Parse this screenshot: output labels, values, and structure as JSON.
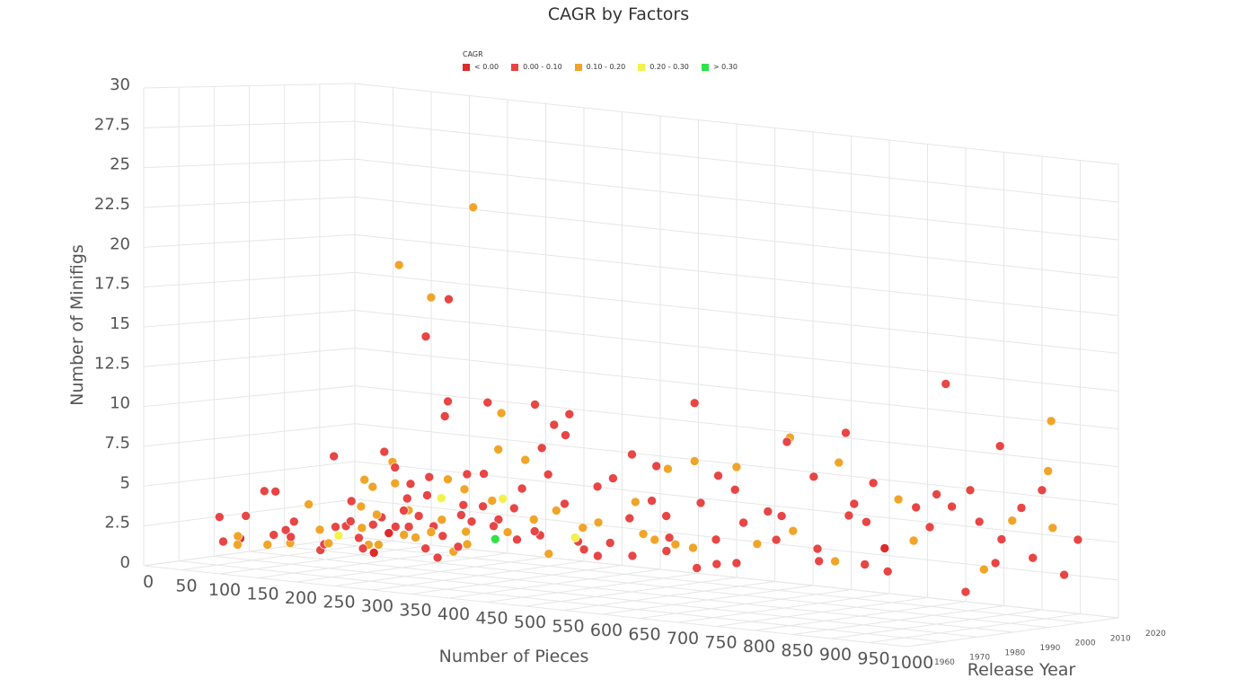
{
  "chart_data": {
    "type": "scatter3d",
    "title": "CAGR by Factors",
    "x_axis": {
      "label": "Number of Pieces",
      "range": [
        0,
        1000
      ],
      "ticks": [
        0,
        50,
        100,
        150,
        200,
        250,
        300,
        350,
        400,
        450,
        500,
        550,
        600,
        650,
        700,
        750,
        800,
        850,
        900,
        950,
        1000
      ]
    },
    "y_axis": {
      "label": "Release Year",
      "range": [
        1960,
        2020
      ],
      "ticks": [
        1960,
        1970,
        1980,
        1990,
        2000,
        2010,
        2020
      ]
    },
    "z_axis": {
      "label": "Number of Minifigs",
      "range": [
        0,
        30
      ],
      "ticks": [
        "0",
        "2.5",
        "5",
        "7.5",
        "10",
        "12.5",
        "15",
        "17.5",
        "20",
        "22.5",
        "25",
        "27.5",
        "30"
      ]
    },
    "grid": true,
    "legend": {
      "title": "CAGR",
      "placement": "top-center",
      "entries": [
        {
          "label": "< 0.00",
          "color": "#e02a2a"
        },
        {
          "label": "0.00 - 0.10",
          "color": "#e84545"
        },
        {
          "label": "0.10 - 0.20",
          "color": "#f0a529"
        },
        {
          "label": "0.20 - 0.30",
          "color": "#f2f24a"
        },
        {
          "label": "> 0.30",
          "color": "#2ee24a"
        }
      ]
    },
    "point_fields": [
      "pieces",
      "release_year",
      "minifigs",
      "cagr_class"
    ],
    "points": [
      [
        12,
        1980,
        1.0,
        1
      ],
      [
        25,
        1982,
        1.2,
        0
      ],
      [
        40,
        1978,
        1.0,
        2
      ],
      [
        55,
        1985,
        1.5,
        1
      ],
      [
        70,
        1980,
        1.1,
        2
      ],
      [
        80,
        1983,
        2.0,
        1
      ],
      [
        95,
        1981,
        1.3,
        2
      ],
      [
        105,
        1979,
        1.8,
        1
      ],
      [
        120,
        1984,
        2.2,
        2
      ],
      [
        130,
        1982,
        1.0,
        1
      ],
      [
        145,
        1986,
        2.5,
        1
      ],
      [
        150,
        1980,
        1.6,
        2
      ],
      [
        165,
        1983,
        3.0,
        1
      ],
      [
        170,
        1987,
        1.4,
        2
      ],
      [
        185,
        1981,
        2.1,
        1
      ],
      [
        190,
        1985,
        3.5,
        2
      ],
      [
        200,
        1982,
        1.2,
        0
      ],
      [
        210,
        1986,
        2.8,
        1
      ],
      [
        220,
        1979,
        1.9,
        2
      ],
      [
        230,
        1984,
        4.0,
        1
      ],
      [
        240,
        1988,
        1.5,
        1
      ],
      [
        250,
        1983,
        2.4,
        2
      ],
      [
        255,
        1980,
        3.2,
        1
      ],
      [
        265,
        1986,
        1.1,
        1
      ],
      [
        275,
        1982,
        2.9,
        2
      ],
      [
        285,
        1989,
        4.5,
        1
      ],
      [
        295,
        1984,
        1.7,
        2
      ],
      [
        305,
        1987,
        3.6,
        1
      ],
      [
        315,
        1981,
        2.2,
        1
      ],
      [
        60,
        1976,
        3.0,
        1
      ],
      [
        75,
        1978,
        4.6,
        1
      ],
      [
        85,
        1979,
        4.6,
        1
      ],
      [
        30,
        1975,
        2.8,
        1
      ],
      [
        160,
        1988,
        5.5,
        2
      ],
      [
        200,
        1988,
        6.5,
        1
      ],
      [
        180,
        1986,
        5.2,
        2
      ],
      [
        110,
        1983,
        3.8,
        2
      ],
      [
        140,
        1985,
        1.9,
        3
      ],
      [
        225,
        1987,
        5.6,
        1
      ],
      [
        260,
        1990,
        6.0,
        2
      ],
      [
        45,
        1977,
        1.6,
        2
      ],
      [
        100,
        1981,
        2.7,
        1
      ],
      [
        215,
        1983,
        2.5,
        0
      ],
      [
        290,
        1989,
        2.0,
        2
      ],
      [
        320,
        1990,
        3.3,
        1
      ],
      [
        135,
        1982,
        1.4,
        1
      ],
      [
        175,
        1984,
        2.6,
        2
      ],
      [
        245,
        1985,
        3.7,
        1
      ],
      [
        195,
        1980,
        1.5,
        1
      ],
      [
        120,
        1988,
        6.8,
        1
      ],
      [
        30,
        2008,
        1.2,
        1
      ],
      [
        45,
        2012,
        2.5,
        2
      ],
      [
        60,
        2006,
        3.1,
        1
      ],
      [
        70,
        2010,
        1.5,
        1
      ],
      [
        85,
        2013,
        4.2,
        2
      ],
      [
        95,
        2007,
        2.2,
        1
      ],
      [
        110,
        2011,
        3.4,
        1
      ],
      [
        115,
        2009,
        1.1,
        2
      ],
      [
        125,
        2014,
        4.8,
        1
      ],
      [
        135,
        2006,
        2.9,
        2
      ],
      [
        140,
        2012,
        1.7,
        1
      ],
      [
        150,
        2008,
        3.9,
        1
      ],
      [
        160,
        2010,
        2.3,
        2
      ],
      [
        170,
        2015,
        5.2,
        1
      ],
      [
        175,
        2007,
        1.4,
        1
      ],
      [
        185,
        2011,
        4.4,
        2
      ],
      [
        190,
        2009,
        2.8,
        1
      ],
      [
        200,
        2013,
        3.3,
        1
      ],
      [
        210,
        2006,
        1.9,
        2
      ],
      [
        215,
        2010,
        5.6,
        1
      ],
      [
        225,
        2012,
        2.6,
        1
      ],
      [
        235,
        2008,
        4.0,
        2
      ],
      [
        240,
        2014,
        1.3,
        1
      ],
      [
        250,
        2011,
        3.5,
        1
      ],
      [
        260,
        2007,
        2.1,
        2
      ],
      [
        265,
        2010,
        4.9,
        1
      ],
      [
        275,
        2013,
        1.8,
        1
      ],
      [
        285,
        2009,
        3.0,
        2
      ],
      [
        290,
        2012,
        5.9,
        1
      ],
      [
        300,
        2006,
        2.4,
        1
      ],
      [
        310,
        2010,
        3.7,
        2
      ],
      [
        320,
        2014,
        1.6,
        1
      ],
      [
        330,
        2008,
        4.3,
        1
      ],
      [
        340,
        2011,
        2.7,
        2
      ],
      [
        350,
        2013,
        5.4,
        1
      ],
      [
        360,
        2007,
        1.5,
        1
      ],
      [
        365,
        2010,
        3.2,
        2
      ],
      [
        375,
        2012,
        6.1,
        1
      ],
      [
        385,
        2009,
        2.0,
        1
      ],
      [
        395,
        2014,
        4.6,
        2
      ],
      [
        405,
        2011,
        1.2,
        1
      ],
      [
        415,
        2008,
        3.8,
        1
      ],
      [
        425,
        2013,
        2.3,
        2
      ],
      [
        435,
        2010,
        5.0,
        1
      ],
      [
        445,
        2012,
        1.7,
        1
      ],
      [
        230,
        2010,
        1.4,
        4
      ],
      [
        150,
        2012,
        3.6,
        3
      ],
      [
        330,
        2011,
        2.0,
        3
      ],
      [
        100,
        2009,
        5.8,
        2
      ],
      [
        80,
        2011,
        6.3,
        1
      ],
      [
        260,
        2012,
        6.7,
        2
      ],
      [
        240,
        2010,
        4.1,
        3
      ],
      [
        355,
        2012,
        0.9,
        1
      ],
      [
        300,
        2010,
        0.8,
        2
      ],
      [
        410,
        2013,
        2.6,
        2
      ],
      [
        201,
        2010,
        23.0,
        2
      ],
      [
        104,
        2010,
        18.7,
        2
      ],
      [
        146,
        2010,
        16.8,
        2
      ],
      [
        169,
        2010,
        16.8,
        1
      ],
      [
        139,
        2010,
        14.2,
        1
      ],
      [
        168,
        2010,
        10.1,
        1
      ],
      [
        220,
        2010,
        10.3,
        1
      ],
      [
        282,
        2010,
        10.5,
        1
      ],
      [
        238,
        2010,
        9.7,
        2
      ],
      [
        164,
        2010,
        9.1,
        1
      ],
      [
        307,
        2010,
        9.3,
        1
      ],
      [
        327,
        2010,
        10.1,
        1
      ],
      [
        322,
        2010,
        8.7,
        1
      ],
      [
        291,
        2010,
        7.7,
        1
      ],
      [
        234,
        2010,
        7.3,
        2
      ],
      [
        409,
        2010,
        7.9,
        1
      ],
      [
        441,
        2010,
        7.3,
        1
      ],
      [
        456,
        2010,
        7.2,
        2
      ],
      [
        491,
        2010,
        7.9,
        2
      ],
      [
        491,
        2010,
        11.7,
        1
      ],
      [
        494,
        2010,
        0.9,
        1
      ],
      [
        520,
        2010,
        1.3,
        1
      ],
      [
        546,
        2010,
        1.5,
        1
      ],
      [
        654,
        2010,
        2.2,
        1
      ],
      [
        714,
        2010,
        2.3,
        1
      ],
      [
        744,
        2010,
        2.0,
        1
      ],
      [
        846,
        2010,
        1.2,
        1
      ],
      [
        885,
        2010,
        3.3,
        1
      ],
      [
        934,
        2010,
        3.9,
        1
      ],
      [
        993,
        2010,
        5.4,
        1
      ],
      [
        958,
        2010,
        13.0,
        2
      ],
      [
        820,
        2010,
        14.7,
        1
      ],
      [
        689,
        2010,
        10.8,
        1
      ],
      [
        891,
        2010,
        11.0,
        1
      ],
      [
        616,
        2010,
        10.1,
        2
      ],
      [
        612,
        2010,
        9.8,
        1
      ],
      [
        647,
        2010,
        7.7,
        1
      ],
      [
        680,
        2010,
        8.8,
        2
      ],
      [
        725,
        2010,
        7.7,
        1
      ],
      [
        758,
        2010,
        6.8,
        2
      ],
      [
        852,
        2010,
        7.9,
        1
      ],
      [
        919,
        2010,
        7.1,
        1
      ],
      [
        954,
        2010,
        9.7,
        2
      ],
      [
        946,
        2010,
        8.4,
        1
      ],
      [
        893,
        2010,
        4.9,
        1
      ],
      [
        907,
        2010,
        6.2,
        2
      ],
      [
        781,
        2010,
        6.4,
        1
      ],
      [
        828,
        2010,
        6.7,
        1
      ],
      [
        808,
        2010,
        7.4,
        1
      ],
      [
        778,
        2010,
        4.2,
        2
      ],
      [
        799,
        2010,
        5.2,
        1
      ],
      [
        864,
        2010,
        5.9,
        1
      ],
      [
        716,
        2010,
        5.1,
        1
      ],
      [
        693,
        2010,
        5.4,
        1
      ],
      [
        652,
        2010,
        3.0,
        1
      ],
      [
        675,
        2010,
        2.3,
        2
      ],
      [
        598,
        2010,
        3.3,
        1
      ],
      [
        573,
        2010,
        2.9,
        2
      ],
      [
        605,
        2010,
        4.9,
        1
      ],
      [
        587,
        2010,
        5.1,
        1
      ],
      [
        544,
        2010,
        6.3,
        1
      ],
      [
        546,
        2010,
        7.8,
        2
      ],
      [
        522,
        2010,
        7.1,
        1
      ],
      [
        499,
        2010,
        5.2,
        1
      ],
      [
        555,
        2010,
        4.2,
        1
      ],
      [
        519,
        2010,
        2.9,
        1
      ],
      [
        489,
        2010,
        2.2,
        2
      ],
      [
        466,
        2010,
        2.3,
        2
      ],
      [
        458,
        2010,
        2.7,
        1
      ],
      [
        454,
        2010,
        4.1,
        1
      ],
      [
        620,
        2010,
        4.0,
        2
      ],
      [
        700,
        2010,
        6.2,
        1
      ],
      [
        740,
        2010,
        3.5,
        0
      ],
      [
        870,
        2010,
        2.8,
        2
      ],
      [
        960,
        2010,
        6.0,
        2
      ],
      [
        975,
        2010,
        3.0,
        1
      ]
    ]
  }
}
